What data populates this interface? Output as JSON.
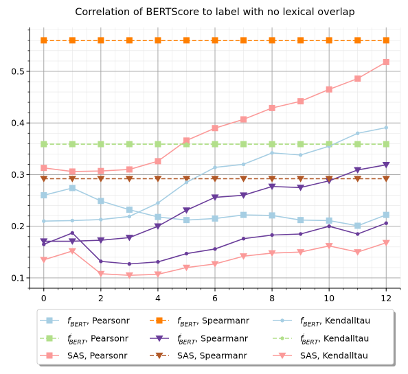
{
  "chart_data": {
    "type": "line",
    "title": "Correlation of BERTScore to label with no lexical overlap",
    "xlabel": "",
    "ylabel": "",
    "xlim": [
      -0.5,
      12.5
    ],
    "ylim": [
      0.08,
      0.585
    ],
    "x_ticks": [
      0,
      2,
      4,
      6,
      8,
      10,
      12
    ],
    "y_ticks": [
      0.1,
      0.2,
      0.3,
      0.4,
      0.5
    ],
    "x_tick_labels": [
      "0",
      "2",
      "4",
      "6",
      "8",
      "10",
      "12"
    ],
    "y_tick_labels": [
      "0.1",
      "0.2",
      "0.3",
      "0.4",
      "0.5"
    ],
    "grid": true,
    "legend_position": "bottom, outside plot area, 3 columns",
    "x": [
      0,
      1,
      2,
      3,
      4,
      5,
      6,
      7,
      8,
      9,
      10,
      11,
      12
    ],
    "series": [
      {
        "name": "f_BERT, Pearsonr",
        "legend_base": "f",
        "legend_sub": "BERT",
        "legend_prime": false,
        "legend_suffix": ", Pearsonr",
        "color": "#a6cee3",
        "dash": false,
        "marker": "square",
        "values": [
          0.26,
          0.274,
          0.249,
          0.232,
          0.218,
          0.212,
          0.215,
          0.222,
          0.221,
          0.212,
          0.211,
          0.201,
          0.222
        ]
      },
      {
        "name": "f'_BERT, Pearsonr",
        "legend_base": "f",
        "legend_sub": "BERT",
        "legend_prime": true,
        "legend_suffix": ", Pearsonr",
        "color": "#b2df8a",
        "dash": true,
        "marker": "square",
        "values": [
          0.359,
          0.359,
          0.359,
          0.359,
          0.359,
          0.359,
          0.359,
          0.359,
          0.359,
          0.359,
          0.359,
          0.359,
          0.359
        ]
      },
      {
        "name": "SAS, Pearsonr",
        "legend_base": "SAS, Pearsonr",
        "legend_sub": "",
        "legend_prime": false,
        "legend_suffix": "",
        "color": "#fb9a99",
        "dash": false,
        "marker": "square",
        "values": [
          0.313,
          0.306,
          0.307,
          0.31,
          0.326,
          0.366,
          0.39,
          0.407,
          0.429,
          0.442,
          0.465,
          0.486,
          0.518
        ]
      },
      {
        "name": "f_BERT, Spearmanr",
        "legend_base": "f",
        "legend_sub": "BERT",
        "legend_prime": false,
        "legend_suffix": ", Spearmanr",
        "color": "#ff7f00",
        "dash": true,
        "marker": "square",
        "values": [
          0.56,
          0.56,
          0.56,
          0.56,
          0.56,
          0.56,
          0.56,
          0.56,
          0.56,
          0.56,
          0.56,
          0.56,
          0.56
        ]
      },
      {
        "name": "f'_BERT, Spearmanr",
        "legend_base": "f",
        "legend_sub": "BERT",
        "legend_prime": true,
        "legend_suffix": ", Spearmanr",
        "color": "#6a3d9a",
        "dash": false,
        "marker": "triangle-down",
        "values": [
          0.171,
          0.171,
          0.173,
          0.178,
          0.2,
          0.231,
          0.256,
          0.26,
          0.277,
          0.275,
          0.288,
          0.309,
          0.319
        ]
      },
      {
        "name": "SAS, Spearmanr",
        "legend_base": "SAS, Spearmanr",
        "legend_sub": "",
        "legend_prime": false,
        "legend_suffix": "",
        "color": "#b15928",
        "dash": true,
        "marker": "triangle-down",
        "values": [
          0.292,
          0.292,
          0.292,
          0.292,
          0.292,
          0.292,
          0.292,
          0.292,
          0.292,
          0.292,
          0.292,
          0.292,
          0.292
        ]
      },
      {
        "name": "f_BERT, Kendalltau",
        "legend_base": "f",
        "legend_sub": "BERT",
        "legend_prime": false,
        "legend_suffix": ", Kendalltau",
        "color": "#a6cee3",
        "dash": false,
        "marker": "dot",
        "values": [
          0.21,
          0.211,
          0.213,
          0.219,
          0.245,
          0.285,
          0.314,
          0.32,
          0.342,
          0.338,
          0.355,
          0.38,
          0.391
        ]
      },
      {
        "name": "f'_BERT, Kendalltau",
        "legend_base": "f",
        "legend_sub": "BERT",
        "legend_prime": true,
        "legend_suffix": ", Kendalltau",
        "color": "#b2df8a",
        "dash": true,
        "marker": "dot",
        "values": [
          0.359,
          0.359,
          0.359,
          0.359,
          0.359,
          0.359,
          0.359,
          0.359,
          0.359,
          0.359,
          0.359,
          0.359,
          0.359
        ]
      },
      {
        "name": "SAS, Kendalltau",
        "legend_base": "SAS, Kendalltau",
        "legend_sub": "",
        "legend_prime": false,
        "legend_suffix": "",
        "color": "#fb9a99",
        "dash": false,
        "marker": "triangle-down",
        "values": [
          0.135,
          0.152,
          0.108,
          0.105,
          0.107,
          0.12,
          0.127,
          0.142,
          0.148,
          0.15,
          0.162,
          0.15,
          0.168
        ]
      },
      {
        "name": "f'_BERT, Spearmanr (lower)",
        "legend_hidden": true,
        "color": "#6a3d9a",
        "dash": false,
        "marker": "dot",
        "values": [
          0.165,
          0.187,
          0.132,
          0.127,
          0.131,
          0.147,
          0.156,
          0.176,
          0.183,
          0.185,
          0.2,
          0.185,
          0.206
        ]
      }
    ]
  }
}
